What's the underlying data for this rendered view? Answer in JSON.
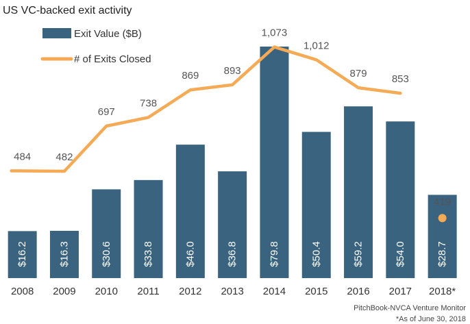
{
  "chart_data": {
    "type": "bar",
    "title": "US VC-backed exit activity",
    "categories": [
      "2008",
      "2009",
      "2010",
      "2011",
      "2012",
      "2013",
      "2014",
      "2015",
      "2016",
      "2017",
      "2018*"
    ],
    "series": [
      {
        "name": "Exit Value ($B)",
        "type": "bar",
        "color": "#3a6380",
        "values": [
          16.2,
          16.3,
          30.6,
          33.8,
          46.0,
          36.8,
          79.8,
          50.4,
          59.2,
          54.0,
          28.7
        ],
        "labels": [
          "$16.2",
          "$16.3",
          "$30.6",
          "$33.8",
          "$46.0",
          "$36.8",
          "$79.8",
          "$50.4",
          "$59.2",
          "$54.0",
          "$28.7"
        ]
      },
      {
        "name": "# of Exits Closed",
        "type": "line",
        "color": "#f5aa55",
        "values": [
          484,
          482,
          697,
          738,
          869,
          893,
          1073,
          1012,
          879,
          853,
          419
        ],
        "labels": [
          "484",
          "482",
          "697",
          "738",
          "869",
          "893",
          "1,073",
          "1,012",
          "879",
          "853",
          "419"
        ],
        "connected_points": 10,
        "separate_marker_points": [
          10
        ]
      }
    ],
    "legend": {
      "placement": "top-left"
    },
    "grid": false
  },
  "source": {
    "line1": "PitchBook-NVCA Venture Monitor",
    "line2": "*As of June 30, 2018"
  }
}
